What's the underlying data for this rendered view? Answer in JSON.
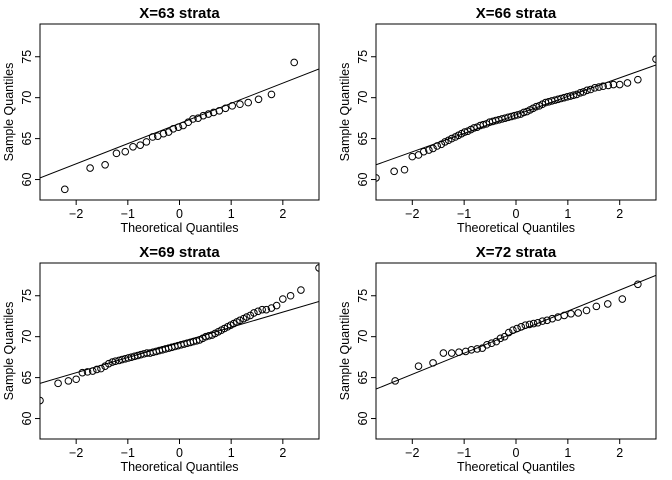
{
  "chart_data": [
    {
      "type": "scatter",
      "title": "X=63 strata",
      "xlabel": "Theoretical Quantiles",
      "ylabel": "Sample Quantiles",
      "xlim": [
        -2.7,
        2.7
      ],
      "ylim": [
        57.5,
        79
      ],
      "xticks": [
        -2,
        -1,
        0,
        1,
        2
      ],
      "yticks": [
        60,
        65,
        70,
        75
      ],
      "reference_line": [
        [
          -2.7,
          60.2
        ],
        [
          2.7,
          73.5
        ]
      ],
      "points": [
        [
          -2.22,
          58.8
        ],
        [
          -1.73,
          61.4
        ],
        [
          -1.44,
          61.8
        ],
        [
          -1.22,
          63.2
        ],
        [
          -1.05,
          63.4
        ],
        [
          -0.9,
          64.0
        ],
        [
          -0.76,
          64.2
        ],
        [
          -0.64,
          64.6
        ],
        [
          -0.52,
          65.2
        ],
        [
          -0.42,
          65.3
        ],
        [
          -0.31,
          65.6
        ],
        [
          -0.21,
          65.8
        ],
        [
          -0.12,
          66.2
        ],
        [
          -0.02,
          66.4
        ],
        [
          0.07,
          66.6
        ],
        [
          0.17,
          67.0
        ],
        [
          0.26,
          67.4
        ],
        [
          0.36,
          67.5
        ],
        [
          0.46,
          67.8
        ],
        [
          0.56,
          68.0
        ],
        [
          0.66,
          68.2
        ],
        [
          0.77,
          68.4
        ],
        [
          0.89,
          68.7
        ],
        [
          1.02,
          69.0
        ],
        [
          1.17,
          69.2
        ],
        [
          1.33,
          69.4
        ],
        [
          1.53,
          69.8
        ],
        [
          1.78,
          70.4
        ],
        [
          2.22,
          74.3
        ]
      ]
    },
    {
      "type": "scatter",
      "title": "X=66 strata",
      "xlabel": "Theoretical Quantiles",
      "ylabel": "Sample Quantiles",
      "xlim": [
        -2.7,
        2.7
      ],
      "ylim": [
        57.5,
        79
      ],
      "xticks": [
        -2,
        -1,
        0,
        1,
        2
      ],
      "yticks": [
        60,
        65,
        70,
        75
      ],
      "reference_line": [
        [
          -2.7,
          61.8
        ],
        [
          2.7,
          74.0
        ]
      ],
      "points": [
        [
          -2.7,
          60.2
        ],
        [
          -2.35,
          61.0
        ],
        [
          -2.15,
          61.2
        ],
        [
          -2.0,
          62.8
        ],
        [
          -1.88,
          63.0
        ],
        [
          -1.78,
          63.4
        ],
        [
          -1.68,
          63.6
        ],
        [
          -1.6,
          63.8
        ],
        [
          -1.52,
          64.1
        ],
        [
          -1.44,
          64.3
        ],
        [
          -1.37,
          64.6
        ],
        [
          -1.3,
          64.8
        ],
        [
          -1.24,
          65.0
        ],
        [
          -1.17,
          65.2
        ],
        [
          -1.11,
          65.4
        ],
        [
          -1.05,
          65.6
        ],
        [
          -0.99,
          65.8
        ],
        [
          -0.93,
          65.9
        ],
        [
          -0.87,
          66.1
        ],
        [
          -0.81,
          66.3
        ],
        [
          -0.75,
          66.4
        ],
        [
          -0.69,
          66.6
        ],
        [
          -0.63,
          66.7
        ],
        [
          -0.57,
          66.8
        ],
        [
          -0.51,
          67.0
        ],
        [
          -0.45,
          67.1
        ],
        [
          -0.39,
          67.2
        ],
        [
          -0.33,
          67.3
        ],
        [
          -0.27,
          67.4
        ],
        [
          -0.21,
          67.5
        ],
        [
          -0.15,
          67.6
        ],
        [
          -0.09,
          67.7
        ],
        [
          -0.03,
          67.8
        ],
        [
          0.03,
          67.9
        ],
        [
          0.09,
          68.0
        ],
        [
          0.15,
          68.2
        ],
        [
          0.21,
          68.3
        ],
        [
          0.27,
          68.5
        ],
        [
          0.33,
          68.7
        ],
        [
          0.39,
          68.9
        ],
        [
          0.45,
          69.0
        ],
        [
          0.51,
          69.2
        ],
        [
          0.57,
          69.4
        ],
        [
          0.63,
          69.5
        ],
        [
          0.69,
          69.6
        ],
        [
          0.75,
          69.7
        ],
        [
          0.81,
          69.8
        ],
        [
          0.87,
          69.9
        ],
        [
          0.93,
          70.0
        ],
        [
          0.99,
          70.1
        ],
        [
          1.05,
          70.2
        ],
        [
          1.11,
          70.3
        ],
        [
          1.17,
          70.4
        ],
        [
          1.24,
          70.6
        ],
        [
          1.3,
          70.7
        ],
        [
          1.37,
          70.9
        ],
        [
          1.44,
          71.0
        ],
        [
          1.52,
          71.2
        ],
        [
          1.6,
          71.3
        ],
        [
          1.68,
          71.4
        ],
        [
          1.78,
          71.5
        ],
        [
          1.88,
          71.6
        ],
        [
          2.0,
          71.6
        ],
        [
          2.15,
          71.8
        ],
        [
          2.35,
          72.2
        ],
        [
          2.7,
          74.7
        ]
      ]
    },
    {
      "type": "scatter",
      "title": "X=69 strata",
      "xlabel": "Theoretical Quantiles",
      "ylabel": "Sample Quantiles",
      "xlim": [
        -2.7,
        2.7
      ],
      "ylim": [
        57.5,
        79
      ],
      "xticks": [
        -2,
        -1,
        0,
        1,
        2
      ],
      "yticks": [
        60,
        65,
        70,
        75
      ],
      "reference_line": [
        [
          -2.7,
          64.3
        ],
        [
          2.7,
          74.3
        ]
      ],
      "points": [
        [
          -2.7,
          62.2
        ],
        [
          -2.35,
          64.3
        ],
        [
          -2.15,
          64.6
        ],
        [
          -2.0,
          64.8
        ],
        [
          -1.88,
          65.6
        ],
        [
          -1.78,
          65.7
        ],
        [
          -1.68,
          65.8
        ],
        [
          -1.6,
          66.0
        ],
        [
          -1.52,
          66.1
        ],
        [
          -1.44,
          66.4
        ],
        [
          -1.37,
          66.7
        ],
        [
          -1.3,
          66.9
        ],
        [
          -1.24,
          67.0
        ],
        [
          -1.17,
          67.1
        ],
        [
          -1.11,
          67.2
        ],
        [
          -1.05,
          67.3
        ],
        [
          -0.99,
          67.4
        ],
        [
          -0.93,
          67.5
        ],
        [
          -0.87,
          67.6
        ],
        [
          -0.81,
          67.7
        ],
        [
          -0.75,
          67.8
        ],
        [
          -0.69,
          67.9
        ],
        [
          -0.63,
          68.0
        ],
        [
          -0.57,
          68.0
        ],
        [
          -0.51,
          68.1
        ],
        [
          -0.45,
          68.2
        ],
        [
          -0.39,
          68.3
        ],
        [
          -0.33,
          68.4
        ],
        [
          -0.27,
          68.5
        ],
        [
          -0.21,
          68.6
        ],
        [
          -0.15,
          68.7
        ],
        [
          -0.09,
          68.8
        ],
        [
          -0.03,
          68.9
        ],
        [
          0.03,
          69.0
        ],
        [
          0.09,
          69.1
        ],
        [
          0.15,
          69.2
        ],
        [
          0.21,
          69.3
        ],
        [
          0.27,
          69.4
        ],
        [
          0.33,
          69.5
        ],
        [
          0.39,
          69.6
        ],
        [
          0.45,
          69.8
        ],
        [
          0.51,
          70.0
        ],
        [
          0.57,
          70.1
        ],
        [
          0.63,
          70.2
        ],
        [
          0.69,
          70.4
        ],
        [
          0.75,
          70.6
        ],
        [
          0.81,
          70.8
        ],
        [
          0.87,
          71.0
        ],
        [
          0.93,
          71.2
        ],
        [
          0.99,
          71.4
        ],
        [
          1.05,
          71.6
        ],
        [
          1.11,
          71.8
        ],
        [
          1.17,
          72.0
        ],
        [
          1.24,
          72.2
        ],
        [
          1.3,
          72.4
        ],
        [
          1.37,
          72.6
        ],
        [
          1.44,
          72.9
        ],
        [
          1.52,
          73.1
        ],
        [
          1.6,
          73.3
        ],
        [
          1.68,
          73.3
        ],
        [
          1.78,
          73.5
        ],
        [
          1.88,
          73.8
        ],
        [
          2.0,
          74.6
        ],
        [
          2.15,
          75.0
        ],
        [
          2.35,
          75.7
        ],
        [
          2.7,
          78.4
        ]
      ]
    },
    {
      "type": "scatter",
      "title": "X=72 strata",
      "xlabel": "Theoretical Quantiles",
      "ylabel": "Sample Quantiles",
      "xlim": [
        -2.7,
        2.7
      ],
      "ylim": [
        57.5,
        79
      ],
      "xticks": [
        -2,
        -1,
        0,
        1,
        2
      ],
      "yticks": [
        60,
        65,
        70,
        75
      ],
      "reference_line": [
        [
          -2.7,
          63.6
        ],
        [
          2.7,
          77.5
        ]
      ],
      "points": [
        [
          -2.33,
          64.6
        ],
        [
          -1.88,
          66.4
        ],
        [
          -1.6,
          66.8
        ],
        [
          -1.4,
          68.0
        ],
        [
          -1.24,
          68.0
        ],
        [
          -1.1,
          68.1
        ],
        [
          -0.97,
          68.2
        ],
        [
          -0.86,
          68.4
        ],
        [
          -0.75,
          68.5
        ],
        [
          -0.65,
          68.6
        ],
        [
          -0.56,
          69.0
        ],
        [
          -0.47,
          69.2
        ],
        [
          -0.38,
          69.4
        ],
        [
          -0.3,
          69.8
        ],
        [
          -0.22,
          70.0
        ],
        [
          -0.14,
          70.5
        ],
        [
          -0.06,
          70.8
        ],
        [
          0.02,
          71.0
        ],
        [
          0.1,
          71.2
        ],
        [
          0.18,
          71.4
        ],
        [
          0.26,
          71.5
        ],
        [
          0.34,
          71.6
        ],
        [
          0.42,
          71.7
        ],
        [
          0.51,
          71.9
        ],
        [
          0.6,
          72.0
        ],
        [
          0.7,
          72.2
        ],
        [
          0.81,
          72.4
        ],
        [
          0.93,
          72.6
        ],
        [
          1.06,
          72.8
        ],
        [
          1.2,
          72.9
        ],
        [
          1.36,
          73.2
        ],
        [
          1.55,
          73.7
        ],
        [
          1.77,
          74.0
        ],
        [
          2.05,
          74.6
        ],
        [
          2.35,
          76.4
        ]
      ]
    }
  ]
}
